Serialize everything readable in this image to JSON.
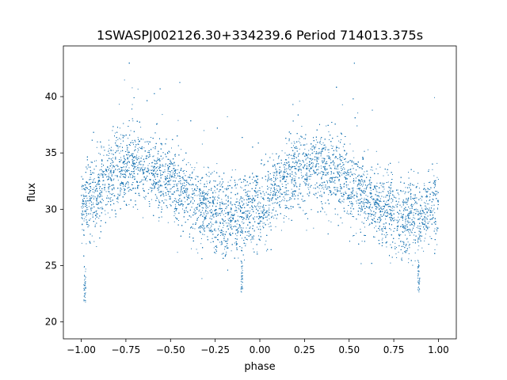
{
  "colors": {
    "series": "#1f77b4",
    "axes": "#000000",
    "background": "#ffffff"
  },
  "chart_data": {
    "type": "scatter",
    "title": "1SWASPJ002126.30+334239.6 Period 714013.375s",
    "xlabel": "phase",
    "ylabel": "flux",
    "xlim": [
      -1.1,
      1.1
    ],
    "ylim": [
      18.5,
      44.5
    ],
    "xticks": [
      -1.0,
      -0.75,
      -0.5,
      -0.25,
      0.0,
      0.25,
      0.5,
      0.75,
      1.0
    ],
    "xtick_labels": [
      "−1.00",
      "−0.75",
      "−0.50",
      "−0.25",
      "0.00",
      "0.25",
      "0.50",
      "0.75",
      "1.00"
    ],
    "yticks": [
      20,
      25,
      30,
      35,
      40
    ],
    "ytick_labels": [
      "20",
      "25",
      "30",
      "35",
      "40"
    ],
    "grid": false,
    "legend": "none",
    "series": [
      {
        "x_range": [
          -1.0,
          1.0
        ],
        "phase_trend": [
          {
            "phase": 0.0,
            "flux": 30.0
          },
          {
            "phase": 0.2,
            "flux": 33.5
          },
          {
            "phase": 0.3,
            "flux": 34.0
          },
          {
            "phase": 0.45,
            "flux": 33.0
          },
          {
            "phase": 0.55,
            "flux": 31.5
          },
          {
            "phase": 0.7,
            "flux": 30.0
          },
          {
            "phase": 0.8,
            "flux": 29.0
          },
          {
            "phase": 0.9,
            "flux": 29.5
          },
          {
            "phase": 1.0,
            "flux": 30.5
          }
        ],
        "scatter_sigma": 1.7,
        "dip_points": [
          {
            "x": -0.98,
            "y_range": [
              21.5,
              25.0
            ]
          },
          {
            "x": -0.1,
            "y_range": [
              22.5,
              25.5
            ]
          },
          {
            "x": 0.89,
            "y_range": [
              22.5,
              25.5
            ]
          }
        ],
        "point_count": 14000
      }
    ]
  }
}
